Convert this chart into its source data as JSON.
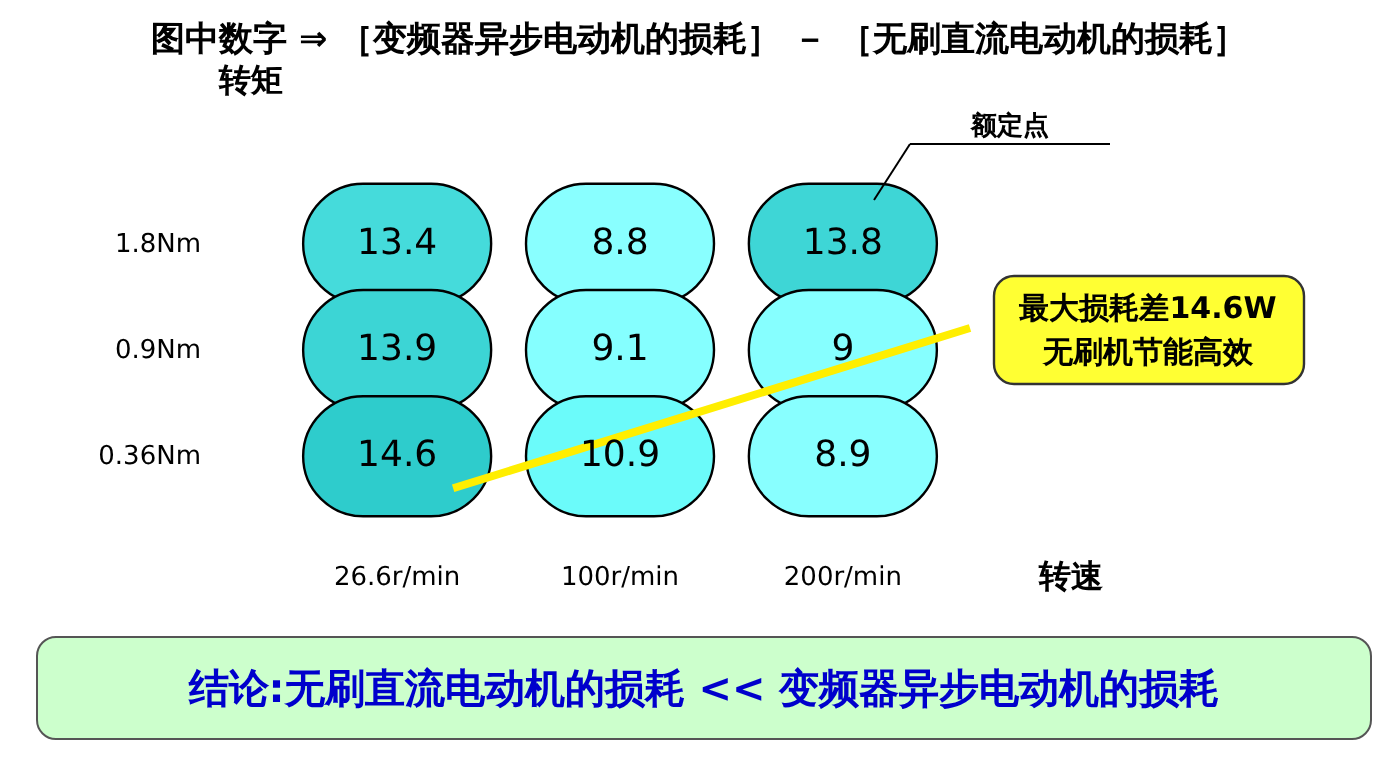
{
  "chart_data": {
    "type": "heatmap",
    "title": "图中数字 ⇒ ［变频器异步电动机的损耗］ － ［无刷直流电动机的损耗］",
    "xlabel": "转速",
    "ylabel": "转矩",
    "categories": [
      "26.6r/min",
      "100r/min",
      "200r/min"
    ],
    "y_categories": [
      "1.8Nm",
      "0.9Nm",
      "0.36Nm"
    ],
    "cells": [
      [
        13.4,
        8.8,
        13.8
      ],
      [
        13.9,
        9.1,
        9
      ],
      [
        14.6,
        10.9,
        8.9
      ]
    ],
    "data_labels": true,
    "annotations": [
      "最大损耗差14.6W\n无刷机节能高效",
      "额定点",
      "结论:无刷直流电动机的损耗 << 变频器异步电动机的损耗"
    ]
  }
}
